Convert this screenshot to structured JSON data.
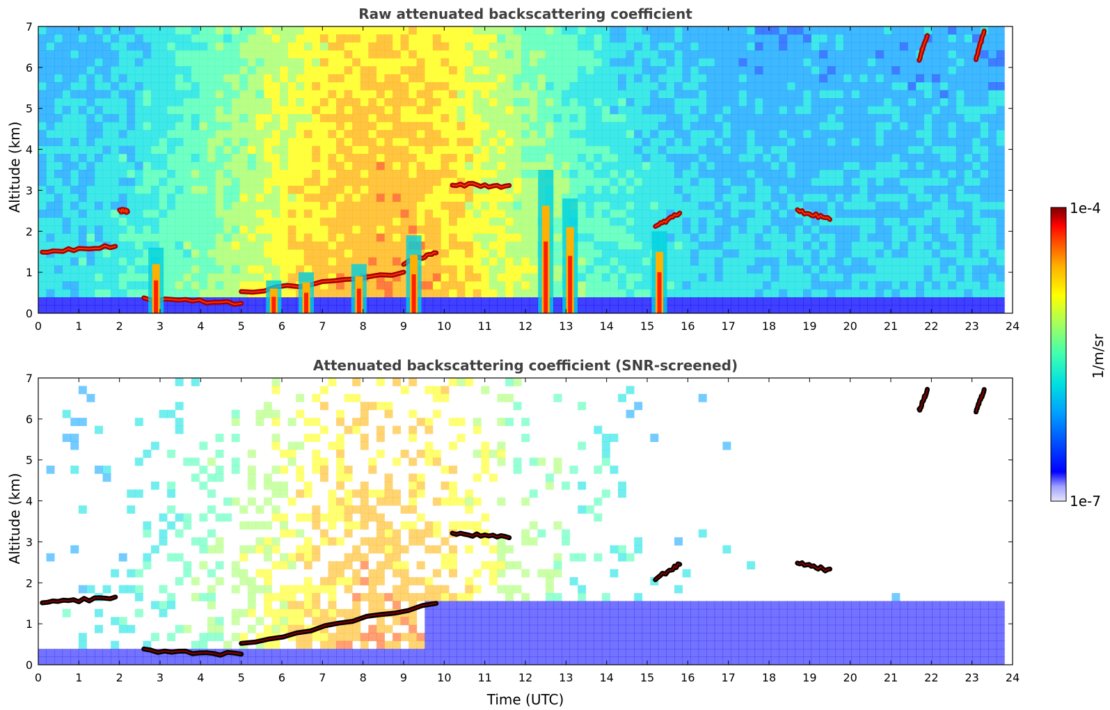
{
  "chart_data": [
    {
      "type": "heatmap",
      "title": "Raw attenuated backscattering coefficient",
      "xlabel": "",
      "ylabel": "Altitude (km)",
      "xlim": [
        0,
        24
      ],
      "ylim": [
        0,
        7
      ],
      "x_ticks": [
        "0",
        "1",
        "2",
        "3",
        "4",
        "5",
        "6",
        "7",
        "8",
        "9",
        "10",
        "11",
        "12",
        "13",
        "14",
        "15",
        "16",
        "17",
        "18",
        "19",
        "20",
        "21",
        "22",
        "23",
        "24"
      ],
      "y_ticks": [
        "0",
        "1",
        "2",
        "3",
        "4",
        "5",
        "6",
        "7"
      ],
      "grid": false,
      "features": [
        {
          "kind": "cloud_layer",
          "time_start": 0.1,
          "time_end": 1.9,
          "altitude_start": 1.5,
          "altitude_end": 1.65
        },
        {
          "kind": "cloud_layer",
          "time_start": 2.0,
          "time_end": 2.2,
          "altitude_start": 2.5,
          "altitude_end": 2.5
        },
        {
          "kind": "cloud_layer",
          "time_start": 2.6,
          "time_end": 5.0,
          "altitude_start": 0.35,
          "altitude_end": 0.25
        },
        {
          "kind": "cloud_layer",
          "time_start": 5.0,
          "time_end": 9.0,
          "altitude_start": 0.5,
          "altitude_end": 1.0
        },
        {
          "kind": "cloud_layer",
          "time_start": 9.0,
          "time_end": 9.8,
          "altitude_start": 1.2,
          "altitude_end": 1.5
        },
        {
          "kind": "cloud_layer",
          "time_start": 10.2,
          "time_end": 11.6,
          "altitude_start": 3.15,
          "altitude_end": 3.1
        },
        {
          "kind": "cloud_layer",
          "time_start": 15.2,
          "time_end": 15.8,
          "altitude_start": 2.1,
          "altitude_end": 2.45
        },
        {
          "kind": "cloud_layer",
          "time_start": 18.7,
          "time_end": 19.5,
          "altitude_start": 2.5,
          "altitude_end": 2.3
        },
        {
          "kind": "cloud_layer",
          "time_start": 21.7,
          "time_end": 21.9,
          "altitude_start": 6.2,
          "altitude_end": 6.8
        },
        {
          "kind": "cloud_layer",
          "time_start": 23.1,
          "time_end": 23.3,
          "altitude_start": 6.2,
          "altitude_end": 6.9
        },
        {
          "kind": "precipitation_column",
          "time": 2.9,
          "altitude_top": 1.6
        },
        {
          "kind": "precipitation_column",
          "time": 5.8,
          "altitude_top": 0.8
        },
        {
          "kind": "precipitation_column",
          "time": 6.6,
          "altitude_top": 1.0
        },
        {
          "kind": "precipitation_column",
          "time": 7.9,
          "altitude_top": 1.2
        },
        {
          "kind": "precipitation_column",
          "time": 9.25,
          "altitude_top": 1.9
        },
        {
          "kind": "precipitation_column",
          "time": 12.5,
          "altitude_top": 3.5
        },
        {
          "kind": "precipitation_column",
          "time": 13.1,
          "altitude_top": 2.8
        },
        {
          "kind": "precipitation_column",
          "time": 15.3,
          "altitude_top": 2.0
        }
      ]
    },
    {
      "type": "heatmap",
      "title": "Attenuated backscattering coefficient (SNR-screened)",
      "xlabel": "Time (UTC)",
      "ylabel": "Altitude (km)",
      "xlim": [
        0,
        24
      ],
      "ylim": [
        0,
        7
      ],
      "x_ticks": [
        "0",
        "1",
        "2",
        "3",
        "4",
        "5",
        "6",
        "7",
        "8",
        "9",
        "10",
        "11",
        "12",
        "13",
        "14",
        "15",
        "16",
        "17",
        "18",
        "19",
        "20",
        "21",
        "22",
        "23",
        "24"
      ],
      "y_ticks": [
        "0",
        "1",
        "2",
        "3",
        "4",
        "5",
        "6",
        "7"
      ],
      "grid": false,
      "features": [
        {
          "kind": "cloud_layer",
          "time_start": 0.1,
          "time_end": 1.9,
          "altitude_start": 1.5,
          "altitude_end": 1.65
        },
        {
          "kind": "cloud_layer",
          "time_start": 2.6,
          "time_end": 5.0,
          "altitude_start": 0.35,
          "altitude_end": 0.25
        },
        {
          "kind": "cloud_layer",
          "time_start": 5.0,
          "time_end": 9.8,
          "altitude_start": 0.5,
          "altitude_end": 1.5
        },
        {
          "kind": "cloud_layer",
          "time_start": 10.2,
          "time_end": 11.6,
          "altitude_start": 3.2,
          "altitude_end": 3.1
        },
        {
          "kind": "cloud_layer",
          "time_start": 15.2,
          "time_end": 15.8,
          "altitude_start": 2.1,
          "altitude_end": 2.45
        },
        {
          "kind": "cloud_layer",
          "time_start": 18.7,
          "time_end": 19.5,
          "altitude_start": 2.5,
          "altitude_end": 2.3
        },
        {
          "kind": "cloud_layer",
          "time_start": 21.7,
          "time_end": 21.9,
          "altitude_start": 6.2,
          "altitude_end": 6.7
        },
        {
          "kind": "cloud_layer",
          "time_start": 23.1,
          "time_end": 23.3,
          "altitude_start": 6.2,
          "altitude_end": 6.7
        }
      ]
    }
  ],
  "colorbar": {
    "label": "1/m/sr",
    "max_label": "1e-4",
    "min_label": "1e-7",
    "colormap": [
      "#e6e6fa",
      "#a0a0ff",
      "#0000ff",
      "#0050ff",
      "#00a0ff",
      "#00e0e0",
      "#40ffb0",
      "#a0ff60",
      "#ffff00",
      "#ffb000",
      "#ff5000",
      "#ff0000",
      "#b40000",
      "#800000"
    ]
  },
  "colors": {
    "background": "#ffffff",
    "axis": "#000000",
    "title_text": "#404040"
  }
}
